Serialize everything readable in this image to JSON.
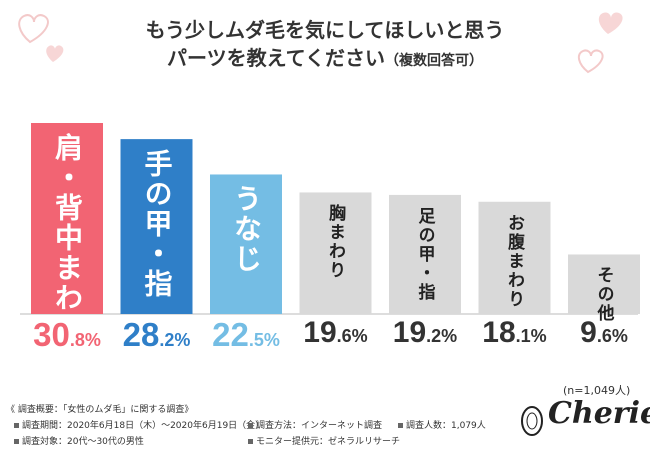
{
  "title_line1": "もう少しムダ毛を気にしてほしいと思う",
  "title_line2": "パーツを教えてください",
  "title_paren": "（複数回答可）",
  "chart_data": {
    "type": "bar",
    "categories": [
      "肩・背中まわり",
      "手の甲・指",
      "うなじ",
      "胸まわり",
      "足の甲・指",
      "お腹まわり",
      "その他"
    ],
    "values": [
      30.8,
      28.2,
      22.5,
      19.6,
      19.2,
      18.1,
      9.6
    ],
    "value_labels": [
      {
        "num": "30",
        "dec": ".8%"
      },
      {
        "num": "28",
        "dec": ".2%"
      },
      {
        "num": "22",
        "dec": ".5%"
      },
      {
        "num": "19",
        "dec": ".6%"
      },
      {
        "num": "19",
        "dec": ".2%"
      },
      {
        "num": "18",
        "dec": ".1%"
      },
      {
        "num": "9",
        "dec": ".6%"
      }
    ],
    "colors": [
      "#f26473",
      "#2f7fc8",
      "#74bde4",
      "#d9d9d9",
      "#d9d9d9",
      "#d9d9d9",
      "#d9d9d9"
    ],
    "label_colors": [
      "#ffffff",
      "#ffffff",
      "#ffffff",
      "#222222",
      "#222222",
      "#222222",
      "#222222"
    ],
    "value_colors": [
      "#f26473",
      "#2f7fc8",
      "#74bde4",
      "#333333",
      "#333333",
      "#333333",
      "#333333"
    ],
    "xlabel": "",
    "ylabel": "",
    "ylim": [
      0,
      32
    ],
    "grid": false
  },
  "n_label": "(n=1,049人)",
  "footer": {
    "summary": "《 調査概要：「女性のムダ毛」に関する調査》",
    "period": "調査期間：2020年6月18日（木）～2020年6月19日（金）",
    "target": "調査対象：20代～30代の男性",
    "method": "調査方法：インターネット調査",
    "provider": "モニター提供元：ゼネラルリサーチ",
    "count": "調査人数：1,079人"
  },
  "logo": "Cherie",
  "colors": {
    "heart": "#f3c9c9",
    "baseline": "#bbbbbb"
  }
}
